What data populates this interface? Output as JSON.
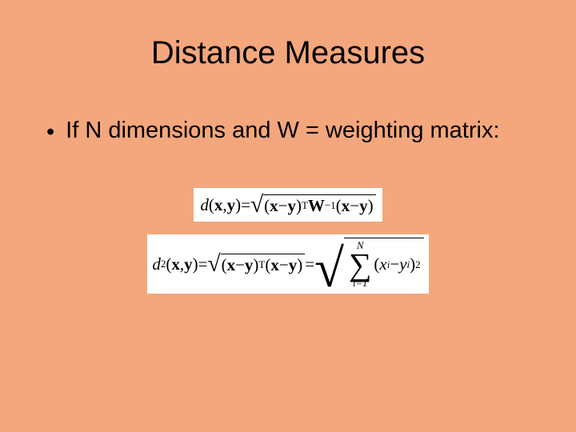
{
  "slide": {
    "background_color": "#f4a77c",
    "title": "Distance Measures",
    "bullet": "If N dimensions and W = weighting matrix:"
  },
  "formula1": {
    "lhs_fn": "d",
    "arg1": "x",
    "arg2": "y",
    "eq": " = ",
    "op1": "(",
    "term1a": "x",
    "minus": " − ",
    "term1b": "y",
    "op2": ")",
    "supT": "T",
    "W": "W",
    "supInv": "−1",
    "op3": "(",
    "term2a": "x",
    "term2b": "y",
    "op4": ")"
  },
  "formula2": {
    "lhs_fn": "d",
    "lhs_sub": "2",
    "arg1": "x",
    "arg2": "y",
    "eq": " = ",
    "op1": "(",
    "term1a": "x",
    "minus": " − ",
    "term1b": "y",
    "op2": ")",
    "supT": "T",
    "op3": "(",
    "term2a": "x",
    "term2b": "y",
    "op4": ")",
    "eq2": " = ",
    "sum_upper": "N",
    "sum_lower": "i=1",
    "sx": "x",
    "si": "i",
    "sy": "y",
    "pow2": "2"
  }
}
